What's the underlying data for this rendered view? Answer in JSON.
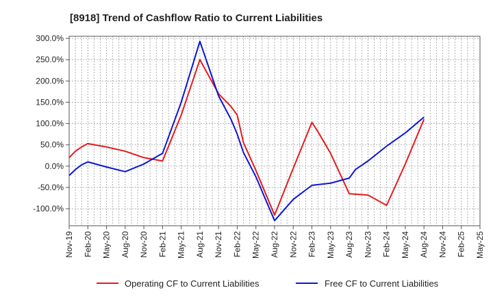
{
  "chart_data": {
    "type": "line",
    "title": "[8918]  Trend of Cashflow Ratio to Current Liabilities",
    "xlabel": "",
    "ylabel": "",
    "categories": [
      "Nov-19",
      "Feb-20",
      "May-20",
      "Aug-20",
      "Nov-20",
      "Feb-21",
      "May-21",
      "Aug-21",
      "Nov-21",
      "Feb-22",
      "May-22",
      "Aug-22",
      "Nov-22",
      "Feb-23",
      "May-23",
      "Aug-23",
      "Nov-23",
      "Feb-24",
      "May-24",
      "Aug-24",
      "Nov-24",
      "Feb-25",
      "May-25"
    ],
    "ylim": [
      -140,
      305
    ],
    "yticks": [
      {
        "value": 300,
        "label": "300.0%"
      },
      {
        "value": 250,
        "label": "250.0%"
      },
      {
        "value": 200,
        "label": "200.0%"
      },
      {
        "value": 150,
        "label": "150.0%"
      },
      {
        "value": 100,
        "label": "100.0%"
      },
      {
        "value": 50,
        "label": "50.0%"
      },
      {
        "value": 0,
        "label": "0.0%"
      },
      {
        "value": -50,
        "label": "-50.0%"
      },
      {
        "value": -100,
        "label": "-100.0%"
      }
    ],
    "grid": true,
    "legend_position": "bottom",
    "series": [
      {
        "name": "Operating CF to Current Liabilities",
        "color": "#e41a1c",
        "points": [
          {
            "x": "Nov-19",
            "y": 20
          },
          {
            "x": "Dec-19",
            "y": 35
          },
          {
            "x": "Jan-20",
            "y": 45
          },
          {
            "x": "Feb-20",
            "y": 53
          },
          {
            "x": "May-20",
            "y": 45
          },
          {
            "x": "Aug-20",
            "y": 35
          },
          {
            "x": "Nov-20",
            "y": 20
          },
          {
            "x": "Feb-21",
            "y": 12
          },
          {
            "x": "May-21",
            "y": 120
          },
          {
            "x": "Aug-21",
            "y": 250
          },
          {
            "x": "Nov-21",
            "y": 170
          },
          {
            "x": "Jan-22",
            "y": 140
          },
          {
            "x": "Feb-22",
            "y": 120
          },
          {
            "x": "Mar-22",
            "y": 55
          },
          {
            "x": "May-22",
            "y": -10
          },
          {
            "x": "Aug-22",
            "y": -115
          },
          {
            "x": "Nov-22",
            "y": -5
          },
          {
            "x": "Feb-23",
            "y": 103
          },
          {
            "x": "Mar-23",
            "y": 80
          },
          {
            "x": "May-23",
            "y": 30
          },
          {
            "x": "Aug-23",
            "y": -65
          },
          {
            "x": "Nov-23",
            "y": -68
          },
          {
            "x": "Feb-24",
            "y": -92
          },
          {
            "x": "May-24",
            "y": 5
          },
          {
            "x": "Aug-24",
            "y": 110
          }
        ]
      },
      {
        "name": "Free CF to Current Liabilities",
        "color": "#0a14d6",
        "points": [
          {
            "x": "Nov-19",
            "y": -22
          },
          {
            "x": "Dec-19",
            "y": -8
          },
          {
            "x": "Jan-20",
            "y": 3
          },
          {
            "x": "Feb-20",
            "y": 10
          },
          {
            "x": "May-20",
            "y": -2
          },
          {
            "x": "Aug-20",
            "y": -13
          },
          {
            "x": "Nov-20",
            "y": 5
          },
          {
            "x": "Feb-21",
            "y": 30
          },
          {
            "x": "May-21",
            "y": 150
          },
          {
            "x": "Aug-21",
            "y": 293
          },
          {
            "x": "Nov-21",
            "y": 165
          },
          {
            "x": "Jan-22",
            "y": 110
          },
          {
            "x": "Feb-22",
            "y": 75
          },
          {
            "x": "Mar-22",
            "y": 32
          },
          {
            "x": "May-22",
            "y": -25
          },
          {
            "x": "Aug-22",
            "y": -128
          },
          {
            "x": "Nov-22",
            "y": -78
          },
          {
            "x": "Feb-23",
            "y": -45
          },
          {
            "x": "May-23",
            "y": -40
          },
          {
            "x": "Aug-23",
            "y": -28
          },
          {
            "x": "Sep-23",
            "y": -8
          },
          {
            "x": "Nov-23",
            "y": 12
          },
          {
            "x": "Feb-24",
            "y": 47
          },
          {
            "x": "May-24",
            "y": 78
          },
          {
            "x": "Aug-24",
            "y": 115
          }
        ]
      }
    ]
  }
}
